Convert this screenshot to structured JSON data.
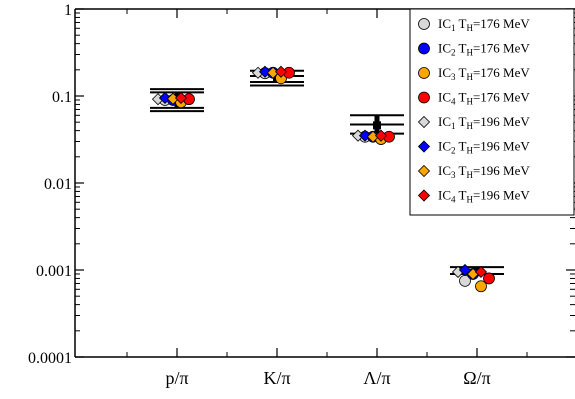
{
  "chart_data": {
    "type": "scatter",
    "title": "",
    "xlabel": "",
    "ylabel": "",
    "y_scale": "log",
    "ylim": [
      0.0001,
      1
    ],
    "y_ticks": [
      "1",
      "0.1",
      "0.01",
      "0.001",
      "0.0001"
    ],
    "categories": [
      "p/π",
      "K/π",
      "Λ/π",
      "Ω/π"
    ],
    "grid": false,
    "legend_position": "top-right",
    "series": [
      {
        "name": "IC1 TH=176 MeV",
        "ic": "IC",
        "ic_sub": "1",
        "t": "T",
        "t_sub": "H",
        "rest": "=176 MeV",
        "marker": "circle",
        "color": "#d9d9d9",
        "values": [
          0.09,
          0.183,
          0.034,
          0.00075
        ]
      },
      {
        "name": "IC2 TH=176 MeV",
        "ic": "IC",
        "ic_sub": "2",
        "t": "T",
        "t_sub": "H",
        "rest": "=176 MeV",
        "marker": "circle",
        "color": "#0000ff",
        "values": [
          0.09,
          0.185,
          0.034,
          0.0009
        ]
      },
      {
        "name": "IC3 TH=176 MeV",
        "ic": "IC",
        "ic_sub": "3",
        "t": "T",
        "t_sub": "H",
        "rest": "=176 MeV",
        "marker": "circle",
        "color": "#ffa500",
        "values": [
          0.085,
          0.16,
          0.032,
          0.00065
        ]
      },
      {
        "name": "IC4 TH=176 MeV",
        "ic": "IC",
        "ic_sub": "4",
        "t": "T",
        "t_sub": "H",
        "rest": "=176 MeV",
        "marker": "circle",
        "color": "#ff0000",
        "values": [
          0.092,
          0.185,
          0.034,
          0.0008
        ]
      },
      {
        "name": "IC1 TH=196 MeV",
        "ic": "IC",
        "ic_sub": "1",
        "t": "T",
        "t_sub": "H",
        "rest": "=196 MeV",
        "marker": "diamond",
        "color": "#d9d9d9",
        "values": [
          0.092,
          0.185,
          0.035,
          0.00095
        ]
      },
      {
        "name": "IC2 TH=196 MeV",
        "ic": "IC",
        "ic_sub": "2",
        "t": "T",
        "t_sub": "H",
        "rest": "=196 MeV",
        "marker": "diamond",
        "color": "#0000ff",
        "values": [
          0.095,
          0.19,
          0.035,
          0.001
        ]
      },
      {
        "name": "IC3 TH=196 MeV",
        "ic": "IC",
        "ic_sub": "3",
        "t": "T",
        "t_sub": "H",
        "rest": "=196 MeV",
        "marker": "diamond",
        "color": "#ffa500",
        "values": [
          0.093,
          0.185,
          0.034,
          0.0009
        ]
      },
      {
        "name": "IC4 TH=196 MeV",
        "ic": "IC",
        "ic_sub": "4",
        "t": "T",
        "t_sub": "H",
        "rest": "=196 MeV",
        "marker": "diamond",
        "color": "#ff0000",
        "values": [
          0.095,
          0.19,
          0.035,
          0.00095
        ]
      }
    ],
    "data_bands": [
      {
        "category": "p/π",
        "central": 0.09,
        "levels": [
          0.067,
          0.073,
          0.11,
          0.12
        ],
        "bar_low": 0.073,
        "bar_high": 0.11
      },
      {
        "category": "K/π",
        "central": 0.16,
        "levels": [
          0.132,
          0.145,
          0.17,
          0.195
        ],
        "bar_low": 0.145,
        "bar_high": 0.17
      },
      {
        "category": "Λ/π",
        "central": 0.046,
        "levels": [
          0.037,
          0.047,
          0.06
        ],
        "bar_low": 0.037,
        "bar_high": 0.06
      },
      {
        "category": "Ω/π",
        "central": 0.00095,
        "levels": [
          0.0009,
          0.00108
        ],
        "bar_low": 0.0009,
        "bar_high": 0.00105
      }
    ]
  }
}
